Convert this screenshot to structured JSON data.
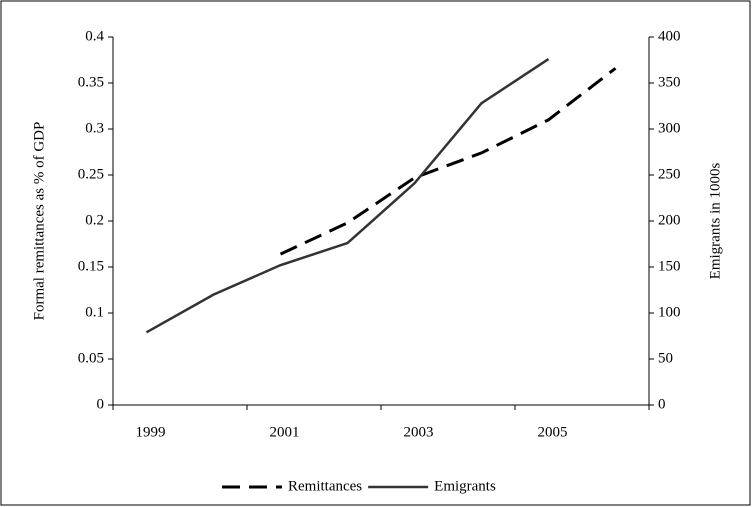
{
  "chart_data": {
    "type": "line",
    "categories": [
      "1999",
      null,
      "2001",
      null,
      "2003",
      null,
      "2005",
      null
    ],
    "y_label": "Formal remittances as % of GDP",
    "y2_label": "Emigrants in 1000s",
    "ylim": [
      0,
      0.4
    ],
    "yticks": [
      0,
      0.05,
      0.1,
      0.15,
      0.2,
      0.25,
      0.3,
      0.35,
      0.4
    ],
    "y2lim": [
      0,
      400
    ],
    "y2ticks": [
      0,
      50,
      100,
      150,
      200,
      250,
      300,
      350,
      400
    ],
    "legend": "bottom",
    "series": [
      {
        "name": "Remittances",
        "color": "#000000",
        "dash": true,
        "values": [
          null,
          null,
          0.164,
          0.198,
          0.247,
          0.274,
          0.31,
          0.366
        ]
      },
      {
        "name": "Emigrants",
        "color": "#333333",
        "axis": "y2",
        "values": [
          79,
          120,
          152,
          176,
          241,
          328,
          376,
          null
        ]
      }
    ]
  }
}
